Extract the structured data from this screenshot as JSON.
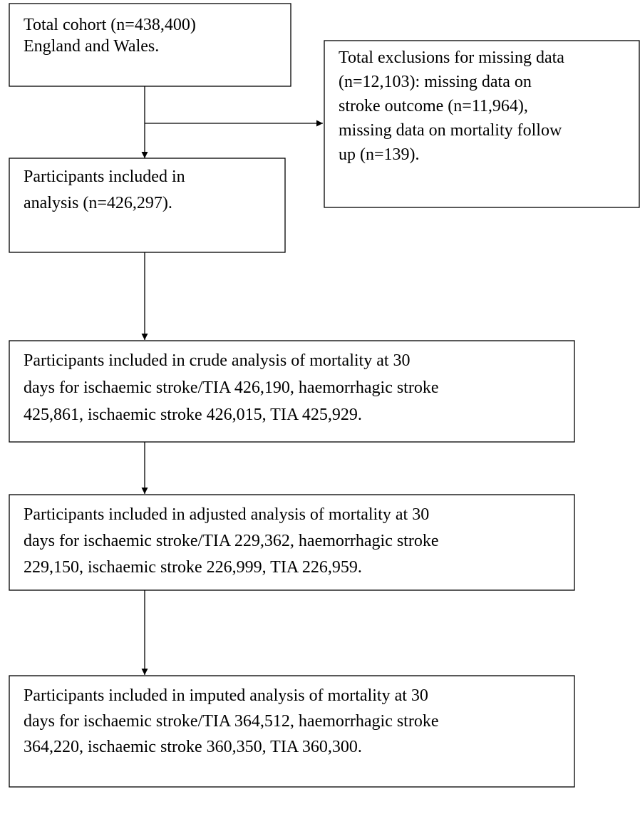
{
  "nodes": [
    {
      "lines": [
        "Total cohort (n=438,400)",
        "England and Wales."
      ]
    },
    {
      "lines": [
        "Total exclusions for missing data",
        "(n=12,103): missing data on",
        "stroke outcome (n=11,964),",
        "missing data on mortality follow",
        "up (n=139)."
      ]
    },
    {
      "lines": [
        "Participants included in",
        "analysis (n=426,297)."
      ]
    },
    {
      "lines": [
        "Participants included in crude analysis of mortality at 30",
        "days for ischaemic stroke/TIA 426,190, haemorrhagic stroke",
        "425,861, ischaemic stroke 426,015, TIA 425,929."
      ]
    },
    {
      "lines": [
        "Participants included in adjusted analysis of mortality at 30",
        "days for ischaemic stroke/TIA 229,362, haemorrhagic stroke",
        "229,150, ischaemic stroke 226,999, TIA 226,959."
      ]
    },
    {
      "lines": [
        "Participants included in imputed analysis of mortality at 30",
        "days for ischaemic stroke/TIA 364,512, haemorrhagic stroke",
        "364,220, ischaemic stroke 360,350, TIA 360,300."
      ]
    }
  ]
}
